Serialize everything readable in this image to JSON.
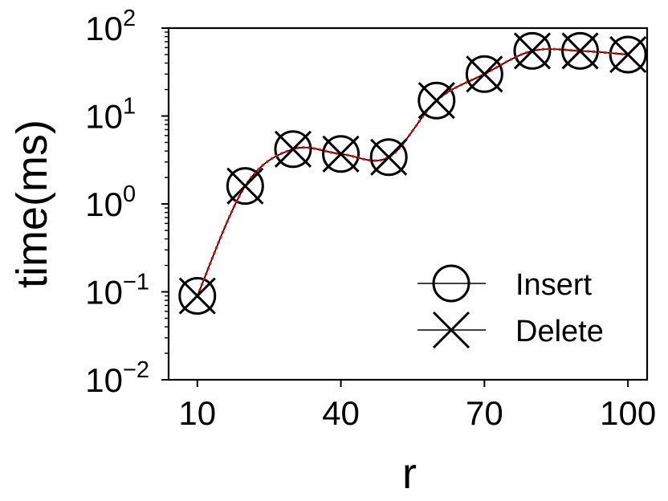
{
  "chart_data": {
    "type": "line",
    "title": "",
    "xlabel": "r",
    "ylabel": "time(ms)",
    "yscale": "log",
    "xlim": [
      4,
      104
    ],
    "ylim": [
      0.01,
      100
    ],
    "x_ticks": [
      10,
      40,
      70,
      100
    ],
    "x_tick_labels": [
      "10",
      "40",
      "70",
      "100"
    ],
    "y_ticks": [
      0.01,
      0.1,
      1,
      10,
      100
    ],
    "y_tick_labels": [
      {
        "base": "10",
        "exp": "−2"
      },
      {
        "base": "10",
        "exp": "−1"
      },
      {
        "base": "10",
        "exp": "0"
      },
      {
        "base": "10",
        "exp": "1"
      },
      {
        "base": "10",
        "exp": "2"
      }
    ],
    "grid": false,
    "legend_position": "lower-right",
    "x": [
      10,
      20,
      30,
      40,
      50,
      60,
      70,
      80,
      90,
      100
    ],
    "series": [
      {
        "name": "Insert",
        "marker": "circle",
        "line_color": "#000000",
        "values": [
          0.09,
          1.6,
          4.2,
          3.7,
          3.4,
          15,
          30,
          55,
          55,
          50
        ]
      },
      {
        "name": "Delete",
        "marker": "x",
        "line_color": "#000000",
        "overlay_color": "#ff0000",
        "values": [
          0.09,
          1.6,
          4.2,
          3.7,
          3.4,
          15,
          30,
          55,
          55,
          50
        ]
      }
    ]
  }
}
